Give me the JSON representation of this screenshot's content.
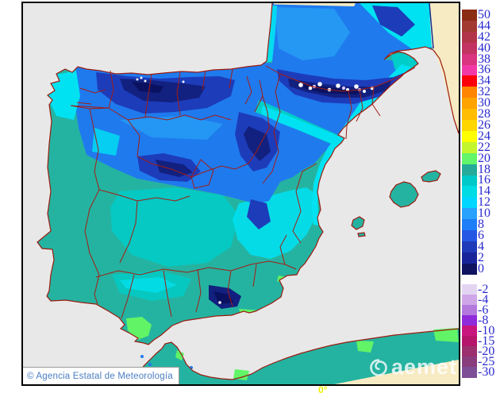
{
  "map": {
    "sea_color": "#e8e8e8",
    "no_data_land_color": "#f7ebc4",
    "coastline_color": "#9b1b10",
    "province_border_color": "#a31d14",
    "data_edge_color": "#1a2f8f",
    "graticule_label": "0°",
    "graticule_label_color": "#f0f000",
    "temperature_fill_colors": {
      "teal_base": "#25b3a1",
      "turquoise": "#00cdc8",
      "cyan": "#00e2f2",
      "light_blue": "#27a0f5",
      "mid_blue": "#1f7aee",
      "deep_blue": "#1d3cba",
      "navy": "#12207f",
      "darkest_navy": "#0a1160",
      "snow_white": "#ffffff",
      "lavender": "#d9c5f0",
      "green": "#61f467"
    }
  },
  "legend": {
    "tick_color": "#2a2ad0",
    "upper": {
      "labels": [
        "50",
        "44",
        "42",
        "40",
        "38",
        "36",
        "34",
        "32",
        "30",
        "28",
        "26",
        "24",
        "22",
        "20",
        "18",
        "16",
        "14",
        "12",
        "10",
        "8",
        "6",
        "4",
        "2",
        "0"
      ],
      "colors": [
        "#8b2d15",
        "#a23a32",
        "#b2344a",
        "#c23361",
        "#da3380",
        "#f238a6",
        "#fb0009",
        "#ff8500",
        "#ffa300",
        "#ffbc00",
        "#ffd600",
        "#feff00",
        "#c3f62d",
        "#63f56a",
        "#26ab9a",
        "#00c9c9",
        "#00dce4",
        "#00d6ff",
        "#28a2fc",
        "#1e7ef8",
        "#2457e4",
        "#1f3ab8",
        "#19249a",
        "#0f1360"
      ]
    },
    "lower": {
      "labels": [
        "-2",
        "-4",
        "-6",
        "-8",
        "-10",
        "-15",
        "-20",
        "-25",
        "-30"
      ],
      "colors": [
        "#e3d5f2",
        "#cfa6e8",
        "#b379dd",
        "#8e2bdb",
        "#c9157e",
        "#b5156b",
        "#9c2f6e",
        "#8a3d7c",
        "#7d4d95"
      ]
    }
  },
  "attribution": {
    "text": "© Agencia Estatal de Meteorología"
  },
  "watermark": {
    "text": "aemet"
  }
}
